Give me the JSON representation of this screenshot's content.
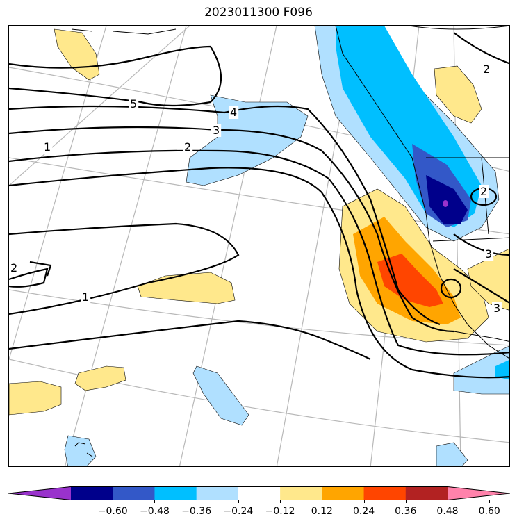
{
  "title": "2023011300 F096",
  "map": {
    "contour_labels": [
      "5",
      "4",
      "3",
      "2",
      "1",
      "2",
      "1",
      "2",
      "2",
      "3",
      "3"
    ],
    "fill_colors": {
      "neg_060": "#9932cc",
      "neg_048": "#00008b",
      "neg_036": "#3358c8",
      "neg_024": "#00bfff",
      "neg_012": "#b0e0ff",
      "pos_012": "#ffe88c",
      "pos_024": "#ffa500",
      "pos_036": "#ff4500",
      "pos_048": "#b22222",
      "pos_060": "#ff82ab"
    }
  },
  "colorbar": {
    "ticks": [
      "−0.60",
      "−0.48",
      "−0.36",
      "−0.24",
      "−0.12",
      "0.12",
      "0.24",
      "0.36",
      "0.48",
      "0.60"
    ],
    "colors": [
      "#9932cc",
      "#00008b",
      "#3358c8",
      "#00bfff",
      "#b0e0ff",
      "#ffffff",
      "#ffe88c",
      "#ffa500",
      "#ff4500",
      "#b22222",
      "#ff82ab"
    ]
  }
}
